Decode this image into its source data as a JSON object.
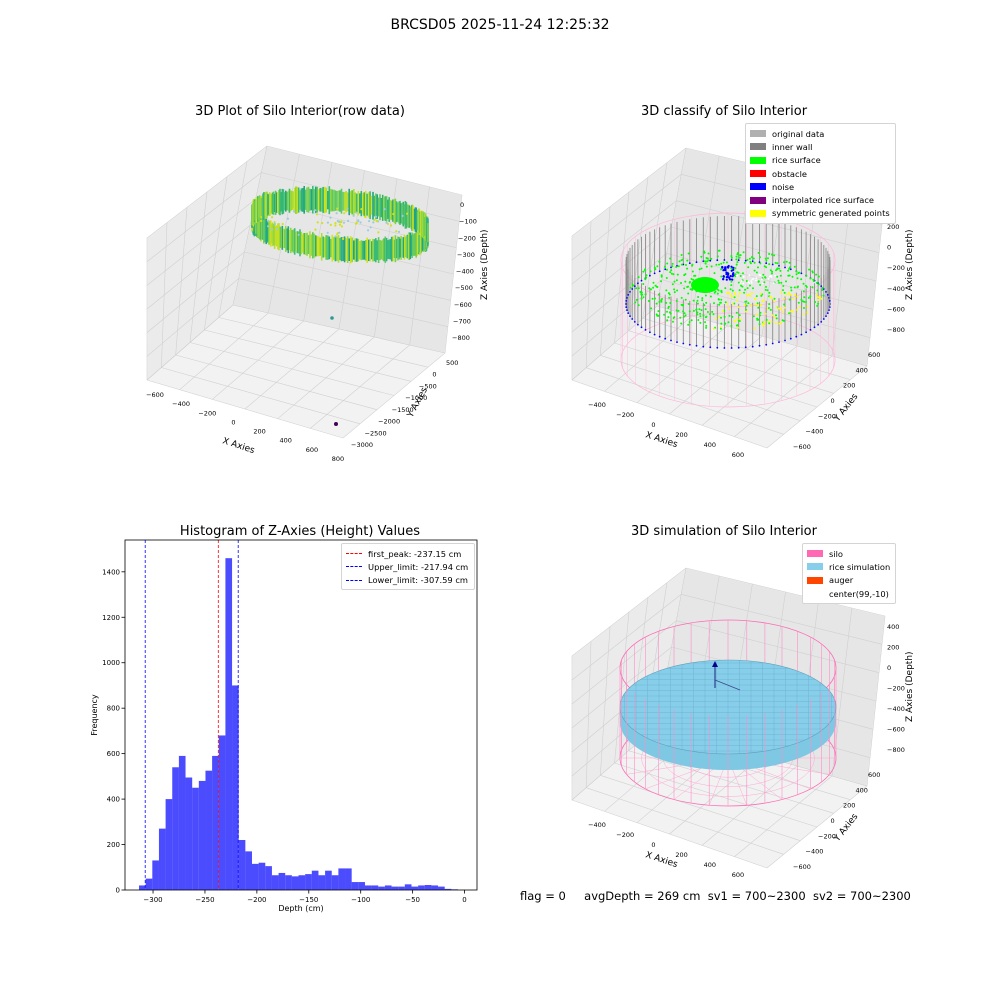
{
  "figure": {
    "suptitle": "BRCSD05 2025-11-24 12:25:32",
    "footer": {
      "flag": "flag = 0",
      "avg_depth": "avgDepth = 269 cm",
      "sv1": "sv1 = 700~2300",
      "sv2": "sv2 = 700~2300"
    }
  },
  "chart_data": [
    {
      "id": "raw",
      "type": "scatter",
      "title": "3D Plot of Silo Interior(row data)",
      "xlabel": "X Axies",
      "ylabel": "Y Axies",
      "zlabel": "Z Axies (Depth)",
      "x_ticks": [
        "−600",
        "−400",
        "−200",
        "0",
        "200",
        "400",
        "600",
        "800"
      ],
      "y_ticks": [
        "500",
        "0",
        "−500",
        "−1000",
        "−1500",
        "−2000",
        "−2500",
        "−3000"
      ],
      "z_ticks": [
        "0",
        "−100",
        "−200",
        "−300",
        "−400",
        "−500",
        "−600",
        "−700",
        "−800"
      ],
      "xlim": [
        -600,
        800
      ],
      "ylim": [
        -3000,
        500
      ],
      "zlim": [
        -800,
        0
      ],
      "colormap": "viridis",
      "grid": true
    },
    {
      "id": "classify",
      "type": "scatter",
      "title": "3D classify of Silo Interior",
      "xlabel": "X Axies",
      "ylabel": "Y Axies",
      "zlabel": "Z Axies (Depth)",
      "x_ticks": [
        "−400",
        "−200",
        "0",
        "200",
        "400",
        "600"
      ],
      "y_ticks": [
        "600",
        "400",
        "200",
        "0",
        "−200",
        "−400",
        "−600"
      ],
      "z_ticks": [
        "200",
        "0",
        "−200",
        "−400",
        "−600",
        "−800"
      ],
      "legend": {
        "placement": "upper-right",
        "entries": [
          {
            "label": "original data",
            "color": "#b0b0b0"
          },
          {
            "label": "inner wall",
            "color": "#808080"
          },
          {
            "label": "rice surface",
            "color": "#00ff00"
          },
          {
            "label": "obstacle",
            "color": "#ff0000"
          },
          {
            "label": "noise",
            "color": "#0000ff"
          },
          {
            "label": "interpolated rice surface",
            "color": "#800080"
          },
          {
            "label": "symmetric generated points",
            "color": "#ffff00"
          }
        ]
      },
      "grid": true
    },
    {
      "id": "histogram",
      "type": "bar",
      "title": "Histogram of Z-Axies (Height) Values",
      "xlabel": "Depth (cm)",
      "ylabel": "Frequency",
      "bar_color": "#0000ff",
      "xlim": [
        -327,
        12
      ],
      "ylim": [
        0,
        1540
      ],
      "x_ticks": [
        -300,
        -250,
        -200,
        -150,
        -100,
        -50,
        0
      ],
      "y_ticks": [
        0,
        200,
        400,
        600,
        800,
        1000,
        1200,
        1400
      ],
      "bin_start": -313.5,
      "bin_width": 6.4,
      "values": [
        20,
        50,
        130,
        270,
        400,
        540,
        590,
        495,
        450,
        480,
        525,
        590,
        680,
        1460,
        900,
        220,
        170,
        115,
        120,
        105,
        65,
        75,
        65,
        60,
        65,
        70,
        85,
        65,
        85,
        65,
        95,
        95,
        35,
        35,
        20,
        20,
        15,
        20,
        15,
        15,
        25,
        15,
        20,
        22,
        20,
        15,
        5,
        3
      ],
      "lines": [
        {
          "label": "first_peak: -237.15 cm",
          "x": -237.15,
          "color": "#ff0000"
        },
        {
          "label": "Upper_limit: -217.94 cm",
          "x": -217.94,
          "color": "#0000ff"
        },
        {
          "label": "Lower_limit: -307.59 cm",
          "x": -307.59,
          "color": "#0000ff"
        }
      ],
      "legend": {
        "placement": "upper-right"
      },
      "grid": false
    },
    {
      "id": "simulation",
      "type": "surface",
      "title": "3D simulation of Silo Interior",
      "xlabel": "X Axies",
      "ylabel": "Y Axies",
      "zlabel": "Z Axies (Depth)",
      "x_ticks": [
        "−400",
        "−200",
        "0",
        "200",
        "400",
        "600"
      ],
      "y_ticks": [
        "600",
        "400",
        "200",
        "0",
        "−200",
        "−400",
        "−600"
      ],
      "z_ticks": [
        "400",
        "200",
        "0",
        "−200",
        "−400",
        "−600",
        "−800"
      ],
      "legend": {
        "placement": "upper-right",
        "entries": [
          {
            "label": "silo",
            "color": "#ff69b4"
          },
          {
            "label": "rice simulation",
            "color": "#87ceeb"
          },
          {
            "label": "auger",
            "color": "#ff4500"
          },
          {
            "label": "center(99,-10)",
            "color": "#ffffff"
          }
        ]
      },
      "grid": true
    }
  ]
}
